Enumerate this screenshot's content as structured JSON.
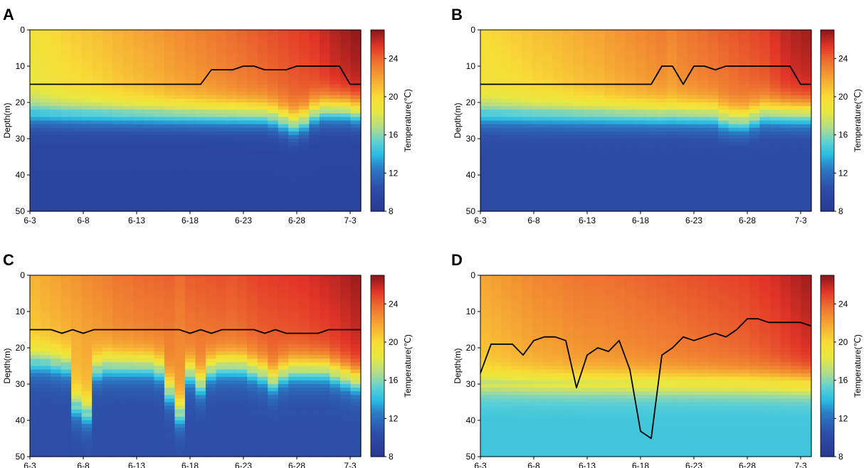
{
  "chart_data": [
    {
      "type": "heatmap",
      "panel_label": "A",
      "xlabel": "",
      "ylabel": "Depth(m)",
      "x_ticks": [
        "6-3",
        "6-8",
        "6-13",
        "6-18",
        "6-23",
        "6-28",
        "7-3"
      ],
      "x_range_days": [
        0,
        31
      ],
      "ylim": [
        0,
        50
      ],
      "y_ticks": [
        0,
        10,
        20,
        30,
        40,
        50
      ],
      "y_inverted": true,
      "colorbar": {
        "label": "Temperature(℃)",
        "range": [
          8,
          27
        ],
        "ticks": [
          8,
          12,
          16,
          20,
          24
        ]
      },
      "surface_temperature": [
        19.5,
        19.8,
        20.1,
        20.4,
        20.6,
        20.8,
        21.0,
        21.2,
        21.5,
        21.7,
        21.9,
        22.1,
        22.3,
        22.6,
        22.8,
        23.0,
        23.2,
        23.4,
        23.6,
        23.8,
        24.0,
        24.2,
        24.4,
        24.6,
        24.8,
        25.0,
        25.2,
        25.4,
        25.8,
        26.2,
        26.5,
        26.8
      ],
      "thermocline_depth": [
        23.5,
        23.5,
        23.5,
        23.5,
        23.5,
        23.5,
        23.5,
        23.5,
        23.5,
        23.5,
        23.5,
        23.5,
        23.5,
        23.5,
        23.5,
        23.5,
        23.5,
        23.5,
        23.5,
        23.5,
        23.5,
        23.5,
        23.5,
        24.0,
        25.0,
        26.0,
        25.0,
        23.0,
        22.0,
        22.0,
        22.0,
        22.5
      ],
      "bottom_temperature": 9.5,
      "mixed_layer_depth_line": [
        {
          "day": 0,
          "depth": 15
        },
        {
          "day": 16,
          "depth": 15
        },
        {
          "day": 17,
          "depth": 11
        },
        {
          "day": 19,
          "depth": 11
        },
        {
          "day": 20,
          "depth": 10
        },
        {
          "day": 21,
          "depth": 10
        },
        {
          "day": 22,
          "depth": 11
        },
        {
          "day": 24,
          "depth": 11
        },
        {
          "day": 25,
          "depth": 10
        },
        {
          "day": 29,
          "depth": 10
        },
        {
          "day": 30,
          "depth": 15
        },
        {
          "day": 31,
          "depth": 15
        }
      ]
    },
    {
      "type": "heatmap",
      "panel_label": "B",
      "xlabel": "",
      "ylabel": "Depth(m)",
      "x_ticks": [
        "6-3",
        "6-8",
        "6-13",
        "6-18",
        "6-23",
        "6-28",
        "7-3"
      ],
      "x_range_days": [
        0,
        31
      ],
      "ylim": [
        0,
        50
      ],
      "y_ticks": [
        0,
        10,
        20,
        30,
        40,
        50
      ],
      "y_inverted": true,
      "colorbar": {
        "label": "Temperature(℃)",
        "range": [
          8,
          27
        ],
        "ticks": [
          8,
          12,
          16,
          20,
          24
        ]
      },
      "surface_temperature": [
        20.0,
        20.2,
        20.4,
        20.6,
        20.8,
        21.0,
        21.1,
        21.3,
        21.5,
        21.7,
        21.9,
        22.0,
        22.3,
        22.5,
        22.7,
        22.9,
        23.1,
        23.3,
        23.0,
        23.4,
        23.6,
        23.8,
        24.0,
        24.2,
        24.4,
        24.6,
        24.8,
        25.0,
        25.5,
        26.0,
        26.3,
        26.5
      ],
      "thermocline_depth": [
        23.5,
        23.5,
        23.5,
        23.5,
        23.5,
        23.5,
        23.5,
        23.5,
        23.5,
        23.5,
        23.5,
        23.5,
        23.5,
        23.5,
        23.5,
        23.5,
        23.5,
        23.5,
        23.5,
        23.5,
        23.5,
        23.5,
        23.5,
        24.5,
        25.0,
        25.0,
        24.0,
        23.0,
        23.0,
        23.0,
        23.0,
        23.0
      ],
      "bottom_temperature": 10.0,
      "mixed_layer_depth_line": [
        {
          "day": 0,
          "depth": 15
        },
        {
          "day": 16,
          "depth": 15
        },
        {
          "day": 17,
          "depth": 10
        },
        {
          "day": 18,
          "depth": 10
        },
        {
          "day": 19,
          "depth": 15
        },
        {
          "day": 20,
          "depth": 10
        },
        {
          "day": 21,
          "depth": 10
        },
        {
          "day": 22,
          "depth": 11
        },
        {
          "day": 23,
          "depth": 10
        },
        {
          "day": 29,
          "depth": 10
        },
        {
          "day": 30,
          "depth": 15
        },
        {
          "day": 31,
          "depth": 15
        }
      ]
    },
    {
      "type": "heatmap",
      "panel_label": "C",
      "xlabel": "",
      "ylabel": "Depth(m)",
      "x_ticks": [
        "6-3",
        "6-8",
        "6-13",
        "6-18",
        "6-23",
        "6-28",
        "7-3"
      ],
      "x_range_days": [
        0,
        31
      ],
      "ylim": [
        0,
        50
      ],
      "y_ticks": [
        0,
        10,
        20,
        30,
        40,
        50
      ],
      "y_inverted": true,
      "colorbar": {
        "label": "Temperature(℃)",
        "range": [
          8,
          27
        ],
        "ticks": [
          8,
          12,
          16,
          20,
          24
        ]
      },
      "surface_temperature": [
        21.5,
        21.8,
        22.0,
        22.3,
        22.5,
        22.8,
        23.0,
        23.2,
        23.5,
        23.6,
        23.8,
        23.9,
        24.0,
        24.1,
        23.8,
        24.2,
        24.3,
        24.4,
        24.5,
        24.4,
        24.6,
        24.8,
        25.0,
        25.1,
        25.2,
        25.3,
        25.4,
        25.6,
        25.8,
        26.0,
        26.3,
        26.6
      ],
      "thermocline_depth": [
        24.0,
        24.0,
        24.5,
        25.0,
        36.0,
        38.0,
        26.0,
        25.0,
        25.0,
        25.0,
        25.0,
        25.0,
        26.0,
        32.0,
        38.0,
        27.0,
        30.0,
        26.0,
        25.0,
        25.0,
        25.0,
        26.0,
        27.0,
        29.0,
        27.0,
        26.0,
        26.0,
        26.0,
        26.0,
        27.0,
        28.0,
        29.0
      ],
      "bottom_temperature": 10.5,
      "mixed_layer_depth_line": [
        {
          "day": 0,
          "depth": 15
        },
        {
          "day": 2,
          "depth": 15
        },
        {
          "day": 3,
          "depth": 16
        },
        {
          "day": 4,
          "depth": 15
        },
        {
          "day": 5,
          "depth": 16
        },
        {
          "day": 6,
          "depth": 15
        },
        {
          "day": 14,
          "depth": 15
        },
        {
          "day": 15,
          "depth": 16
        },
        {
          "day": 16,
          "depth": 15
        },
        {
          "day": 17,
          "depth": 16
        },
        {
          "day": 18,
          "depth": 15
        },
        {
          "day": 21,
          "depth": 15
        },
        {
          "day": 22,
          "depth": 16
        },
        {
          "day": 23,
          "depth": 15
        },
        {
          "day": 24,
          "depth": 16
        },
        {
          "day": 27,
          "depth": 16
        },
        {
          "day": 28,
          "depth": 15
        },
        {
          "day": 31,
          "depth": 15
        }
      ]
    },
    {
      "type": "heatmap",
      "panel_label": "D",
      "xlabel": "",
      "ylabel": "Depth(m)",
      "x_ticks": [
        "6-3",
        "6-8",
        "6-13",
        "6-18",
        "6-23",
        "6-28",
        "7-3"
      ],
      "x_range_days": [
        0,
        31
      ],
      "ylim": [
        0,
        50
      ],
      "y_ticks": [
        0,
        10,
        20,
        30,
        40,
        50
      ],
      "y_inverted": true,
      "colorbar": {
        "label": "Temperature(℃)",
        "range": [
          8,
          27
        ],
        "ticks": [
          8,
          12,
          16,
          20,
          24
        ]
      },
      "surface_temperature": [
        22.0,
        22.2,
        22.4,
        22.6,
        22.8,
        23.0,
        23.1,
        23.2,
        23.4,
        23.5,
        23.6,
        23.6,
        23.7,
        23.8,
        23.9,
        24.0,
        24.1,
        24.2,
        24.3,
        24.4,
        24.5,
        24.6,
        24.7,
        24.8,
        24.9,
        25.0,
        25.2,
        25.4,
        25.6,
        25.9,
        26.2,
        26.5
      ],
      "thermocline_depth": [
        30.0,
        30.0,
        30.0,
        30.0,
        30.0,
        30.0,
        30.0,
        30.0,
        30.0,
        30.0,
        30.0,
        30.0,
        30.0,
        30.0,
        30.0,
        30.0,
        30.0,
        30.0,
        30.0,
        30.0,
        30.0,
        30.0,
        30.0,
        30.0,
        30.0,
        30.0,
        30.0,
        30.0,
        30.0,
        30.0,
        30.0,
        30.0
      ],
      "bottom_temperature": 14.5,
      "mixed_layer_depth_line": [
        {
          "day": 0,
          "depth": 27
        },
        {
          "day": 1,
          "depth": 19
        },
        {
          "day": 3,
          "depth": 19
        },
        {
          "day": 4,
          "depth": 22
        },
        {
          "day": 5,
          "depth": 18
        },
        {
          "day": 6,
          "depth": 17
        },
        {
          "day": 7,
          "depth": 17
        },
        {
          "day": 8,
          "depth": 18
        },
        {
          "day": 9,
          "depth": 31
        },
        {
          "day": 10,
          "depth": 22
        },
        {
          "day": 11,
          "depth": 20
        },
        {
          "day": 12,
          "depth": 21
        },
        {
          "day": 13,
          "depth": 18
        },
        {
          "day": 14,
          "depth": 26
        },
        {
          "day": 15,
          "depth": 43
        },
        {
          "day": 16,
          "depth": 45
        },
        {
          "day": 17,
          "depth": 22
        },
        {
          "day": 18,
          "depth": 20
        },
        {
          "day": 19,
          "depth": 17
        },
        {
          "day": 20,
          "depth": 18
        },
        {
          "day": 21,
          "depth": 17
        },
        {
          "day": 22,
          "depth": 16
        },
        {
          "day": 23,
          "depth": 17
        },
        {
          "day": 24,
          "depth": 15
        },
        {
          "day": 25,
          "depth": 12
        },
        {
          "day": 26,
          "depth": 12
        },
        {
          "day": 27,
          "depth": 13
        },
        {
          "day": 30,
          "depth": 13
        },
        {
          "day": 31,
          "depth": 14
        }
      ]
    }
  ]
}
